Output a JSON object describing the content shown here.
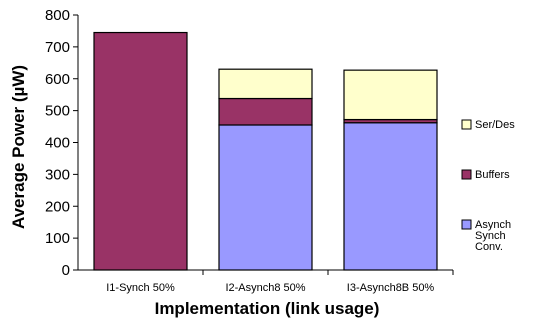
{
  "chart_data": {
    "type": "bar",
    "stacked": true,
    "categories": [
      "I1-Synch 50%",
      "I2-Asynch8 50%",
      "I3-Asynch8B 50%"
    ],
    "series": [
      {
        "name": "Asynch Synch Conv.",
        "color": "#9999ff",
        "values": [
          0,
          455,
          462
        ]
      },
      {
        "name": "Buffers",
        "color": "#993366",
        "values": [
          745,
          83,
          10
        ]
      },
      {
        "name": "Ser/Des",
        "color": "#ffffcc",
        "values": [
          0,
          92,
          155
        ]
      }
    ],
    "title": "",
    "xlabel": "Implementation (link usage)",
    "ylabel": "Average Power (µW)",
    "ylim": [
      0,
      800
    ],
    "yticks": [
      0,
      100,
      200,
      300,
      400,
      500,
      600,
      700,
      800
    ],
    "grid": false,
    "legend_position": "right"
  }
}
